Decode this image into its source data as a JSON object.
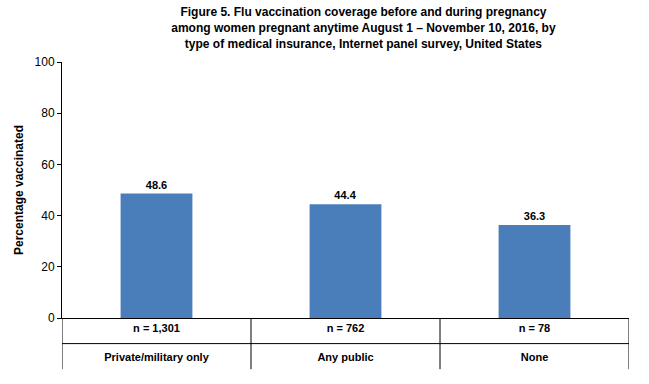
{
  "chart_data": {
    "type": "bar",
    "title": "Figure 5. Flu vaccination coverage before and during pregnancy\namong women pregnant anytime August 1 – November 10, 2016, by\ntype of medical insurance, Internet panel survey, United States",
    "y_label": "Percentage vaccinated",
    "categories": [
      "Private/military only",
      "Any public",
      "None"
    ],
    "n_labels": [
      "n = 1,301",
      "n = 762",
      "n = 78"
    ],
    "values": [
      48.6,
      44.4,
      36.3
    ],
    "color": "#4a7ebb",
    "ylim": [
      0,
      100
    ],
    "yticks": [
      0,
      20,
      40,
      60,
      80,
      100
    ],
    "grid": false,
    "data_labels": true
  }
}
